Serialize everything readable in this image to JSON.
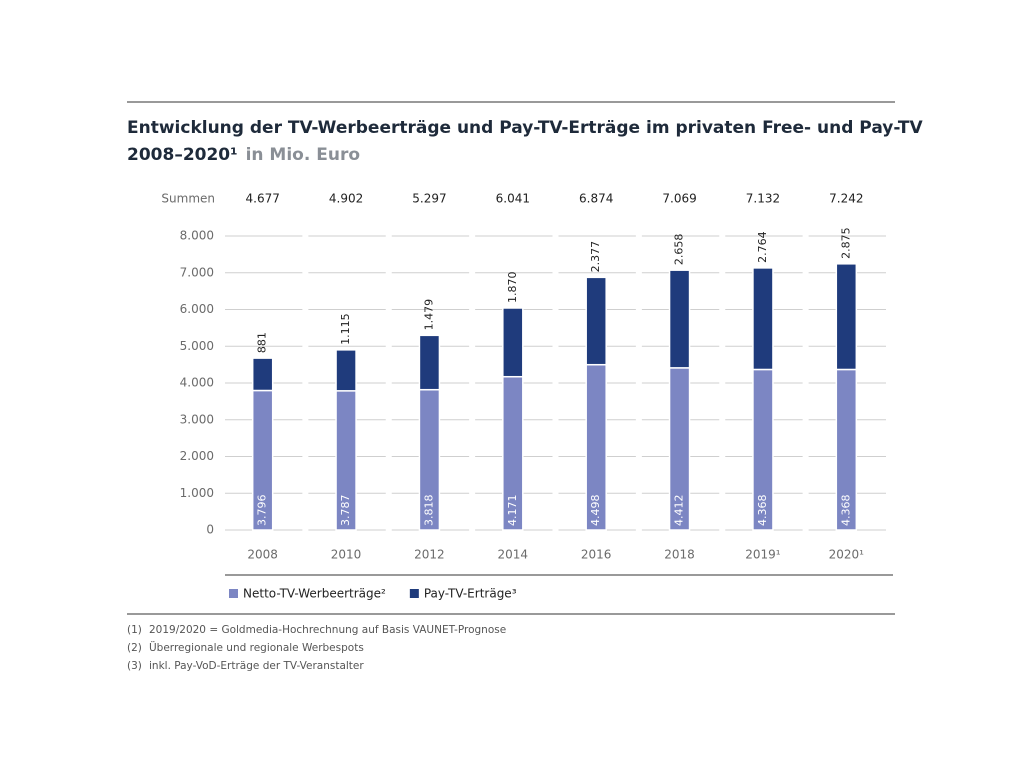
{
  "chart_data": {
    "type": "stacked_bar",
    "title": "Entwicklung der TV-Werbeerträge und Pay-TV-Erträge im privaten Free- und Pay-TV",
    "subtitle": "2008–2020¹",
    "unit": "in Mio. Euro",
    "categories": [
      "2008",
      "2010",
      "2012",
      "2014",
      "2016",
      "2018",
      "2019¹",
      "2020¹"
    ],
    "series": [
      {
        "name": "Netto-TV-Werbeerträge²",
        "color": "#7c86c3",
        "values": [
          3796,
          3787,
          3818,
          4171,
          4498,
          4412,
          4368,
          4368
        ],
        "value_labels": [
          "3.796",
          "3.787",
          "3.818",
          "4.171",
          "4.498",
          "4.412",
          "4.368",
          "4.368"
        ]
      },
      {
        "name": "Pay-TV-Erträge³",
        "color": "#1f3b7c",
        "values": [
          881,
          1115,
          1479,
          1870,
          2377,
          2658,
          2764,
          2875
        ],
        "value_labels": [
          "881",
          "1.115",
          "1.479",
          "1.870",
          "2.377",
          "2.658",
          "2.764",
          "2.875"
        ]
      }
    ],
    "totals": {
      "label": "Summen",
      "values": [
        4677,
        4902,
        5297,
        6041,
        6874,
        7069,
        7132,
        7242
      ],
      "value_labels": [
        "4.677",
        "4.902",
        "5.297",
        "6.041",
        "6.874",
        "7.069",
        "7.132",
        "7.242"
      ]
    },
    "ylim": [
      0,
      8000
    ],
    "yticks": [
      0,
      {
        "value": 1000,
        "label": "1.000"
      },
      {
        "value": 2000,
        "label": "2.000"
      },
      {
        "value": 3000,
        "label": "3.000"
      },
      {
        "value": 4000,
        "label": "4.000"
      },
      {
        "value": 5000,
        "label": "5.000"
      },
      {
        "value": 6000,
        "label": "6.000"
      },
      {
        "value": 7000,
        "label": "7.000"
      },
      {
        "value": 8000,
        "label": "8.000"
      }
    ],
    "grid": true,
    "legend": "bottom-left",
    "notes": [
      {
        "marker": "(1)",
        "text": "2019/2020 = Goldmedia-Hochrechnung auf Basis VAUNET-Prognose"
      },
      {
        "marker": "(2)",
        "text": "Überregionale und regionale Werbespots"
      },
      {
        "marker": "(3)",
        "text": "inkl. Pay-VoD-Erträge der TV-Veranstalter"
      }
    ]
  }
}
